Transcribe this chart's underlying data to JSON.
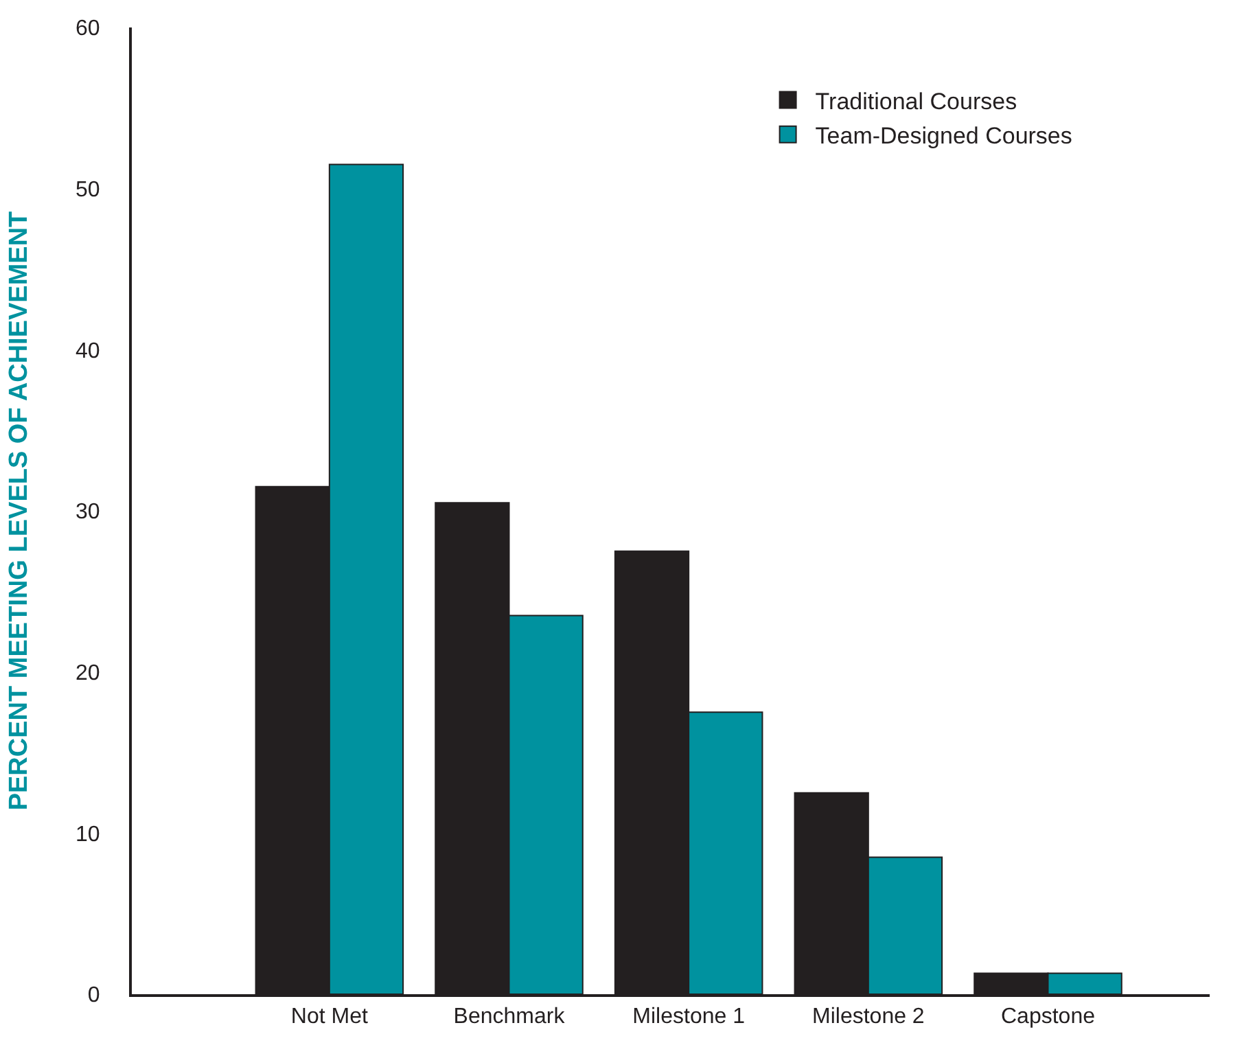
{
  "chart_data": {
    "type": "bar",
    "ylabel": "PERCENT MEETING LEVELS OF ACHIEVEMENT",
    "categories": [
      "Not Met",
      "Benchmark",
      "Milestone 1",
      "Milestone 2",
      "Capstone"
    ],
    "series": [
      {
        "name": "Traditional Courses",
        "color": "#231f20",
        "values": [
          31.5,
          30.5,
          27.5,
          12.5,
          1.3
        ]
      },
      {
        "name": "Team-Designed Courses",
        "color": "#00929f",
        "values": [
          51.5,
          23.5,
          17.5,
          8.5,
          1.3
        ]
      }
    ],
    "ylim": [
      0,
      60
    ],
    "yticks": [
      0,
      10,
      20,
      30,
      40,
      50,
      60
    ],
    "legend": "top right"
  }
}
